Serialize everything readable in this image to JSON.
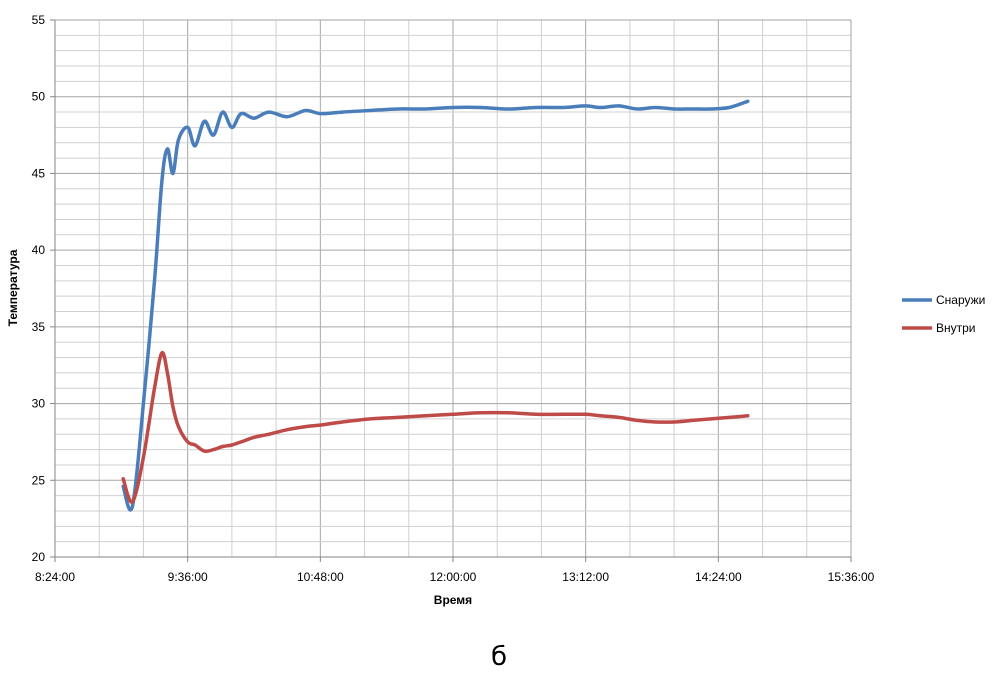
{
  "caption": "б",
  "chart_data": {
    "type": "line",
    "title": "",
    "xlabel": "Время",
    "ylabel": "Температура",
    "x_unit": "time",
    "x_range": [
      "8:24:00",
      "15:36:00"
    ],
    "ylim": [
      20,
      55
    ],
    "x_ticks": [
      "8:24:00",
      "9:36:00",
      "10:48:00",
      "12:00:00",
      "13:12:00",
      "14:24:00",
      "15:36:00"
    ],
    "y_ticks": [
      20,
      25,
      30,
      35,
      40,
      45,
      50,
      55
    ],
    "grid": true,
    "legend_position": "right",
    "x": [
      "9:01:00",
      "9:06:00",
      "9:12:00",
      "9:18:00",
      "9:22:00",
      "9:25:00",
      "9:28:00",
      "9:31:00",
      "9:36:00",
      "9:40:00",
      "9:45:00",
      "9:50:00",
      "9:55:00",
      "10:00:00",
      "10:05:00",
      "10:12:00",
      "10:20:00",
      "10:30:00",
      "10:40:00",
      "10:48:00",
      "11:00:00",
      "11:15:00",
      "11:30:00",
      "11:45:00",
      "12:00:00",
      "12:15:00",
      "12:30:00",
      "12:45:00",
      "13:00:00",
      "13:12:00",
      "13:20:00",
      "13:30:00",
      "13:40:00",
      "13:50:00",
      "14:00:00",
      "14:10:00",
      "14:20:00",
      "14:30:00",
      "14:40:00"
    ],
    "series": [
      {
        "name": "Снаружи",
        "color": "#4a7ebb",
        "values": [
          24.6,
          23.3,
          30.0,
          38.0,
          44.5,
          46.6,
          45.0,
          47.2,
          48.0,
          46.8,
          48.4,
          47.5,
          49.0,
          48.0,
          48.9,
          48.6,
          49.0,
          48.7,
          49.1,
          48.9,
          49.0,
          49.1,
          49.2,
          49.2,
          49.3,
          49.3,
          49.2,
          49.3,
          49.3,
          49.4,
          49.3,
          49.4,
          49.2,
          49.3,
          49.2,
          49.2,
          49.2,
          49.3,
          49.7
        ]
      },
      {
        "name": "Внутри",
        "color": "#be4b48",
        "values": [
          25.1,
          23.6,
          26.5,
          31.0,
          33.3,
          32.0,
          29.8,
          28.5,
          27.5,
          27.3,
          26.9,
          27.0,
          27.2,
          27.3,
          27.5,
          27.8,
          28.0,
          28.3,
          28.5,
          28.6,
          28.8,
          29.0,
          29.1,
          29.2,
          29.3,
          29.4,
          29.4,
          29.3,
          29.3,
          29.3,
          29.2,
          29.1,
          28.9,
          28.8,
          28.8,
          28.9,
          29.0,
          29.1,
          29.2
        ]
      }
    ]
  }
}
